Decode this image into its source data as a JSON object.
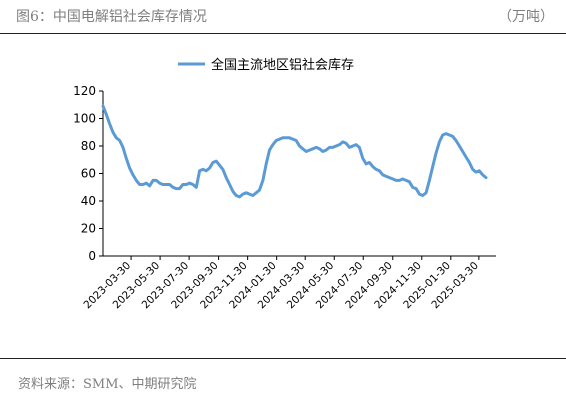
{
  "figure": {
    "title": "图6：中国电解铝社会库存情况",
    "unit": "（万吨）",
    "source": "资料来源：SMM、中期研究院"
  },
  "chart_data": {
    "type": "line",
    "ylim": [
      0,
      120
    ],
    "yticks": [
      0,
      20,
      40,
      60,
      80,
      100,
      120
    ],
    "xticks": [
      "2023-03-30",
      "2023-05-30",
      "2023-07-30",
      "2023-09-30",
      "2023-11-30",
      "2024-01-30",
      "2024-03-30",
      "2024-05-30",
      "2024-07-30",
      "2024-09-30",
      "2024-11-30",
      "2025-01-30",
      "2025-03-30"
    ],
    "xlim": [
      "2023-01-30",
      "2025-05-05"
    ],
    "legend_position": "top",
    "grid": false,
    "colors": {
      "series": "#5b9bd5"
    },
    "series": [
      {
        "name": "全国主流地区铝社会库存",
        "points": [
          [
            "2023-01-30",
            109
          ],
          [
            "2023-02-06",
            103
          ],
          [
            "2023-02-13",
            96
          ],
          [
            "2023-02-20",
            90
          ],
          [
            "2023-02-27",
            86
          ],
          [
            "2023-03-06",
            84
          ],
          [
            "2023-03-13",
            79
          ],
          [
            "2023-03-20",
            71
          ],
          [
            "2023-03-27",
            64
          ],
          [
            "2023-04-03",
            59
          ],
          [
            "2023-04-10",
            55
          ],
          [
            "2023-04-17",
            52
          ],
          [
            "2023-04-24",
            52
          ],
          [
            "2023-05-01",
            53
          ],
          [
            "2023-05-08",
            51
          ],
          [
            "2023-05-15",
            55
          ],
          [
            "2023-05-22",
            55
          ],
          [
            "2023-05-29",
            53
          ],
          [
            "2023-06-05",
            52
          ],
          [
            "2023-06-12",
            52
          ],
          [
            "2023-06-19",
            52
          ],
          [
            "2023-06-26",
            50
          ],
          [
            "2023-07-03",
            49
          ],
          [
            "2023-07-10",
            49
          ],
          [
            "2023-07-17",
            52
          ],
          [
            "2023-07-24",
            52
          ],
          [
            "2023-07-31",
            53
          ],
          [
            "2023-08-07",
            52
          ],
          [
            "2023-08-14",
            50
          ],
          [
            "2023-08-21",
            62
          ],
          [
            "2023-08-28",
            63
          ],
          [
            "2023-09-04",
            62
          ],
          [
            "2023-09-11",
            64
          ],
          [
            "2023-09-18",
            68
          ],
          [
            "2023-09-25",
            69
          ],
          [
            "2023-10-02",
            66
          ],
          [
            "2023-10-09",
            63
          ],
          [
            "2023-10-16",
            57
          ],
          [
            "2023-10-23",
            52
          ],
          [
            "2023-10-30",
            47
          ],
          [
            "2023-11-06",
            44
          ],
          [
            "2023-11-13",
            43
          ],
          [
            "2023-11-20",
            45
          ],
          [
            "2023-11-27",
            46
          ],
          [
            "2023-12-04",
            45
          ],
          [
            "2023-12-11",
            44
          ],
          [
            "2023-12-18",
            46
          ],
          [
            "2023-12-25",
            48
          ],
          [
            "2024-01-01",
            55
          ],
          [
            "2024-01-08",
            67
          ],
          [
            "2024-01-15",
            77
          ],
          [
            "2024-01-22",
            81
          ],
          [
            "2024-01-29",
            84
          ],
          [
            "2024-02-05",
            85
          ],
          [
            "2024-02-12",
            86
          ],
          [
            "2024-02-19",
            86
          ],
          [
            "2024-02-26",
            86
          ],
          [
            "2024-03-04",
            85
          ],
          [
            "2024-03-11",
            84
          ],
          [
            "2024-03-18",
            80
          ],
          [
            "2024-03-25",
            78
          ],
          [
            "2024-04-01",
            76
          ],
          [
            "2024-04-08",
            77
          ],
          [
            "2024-04-15",
            78
          ],
          [
            "2024-04-22",
            79
          ],
          [
            "2024-04-29",
            78
          ],
          [
            "2024-05-06",
            76
          ],
          [
            "2024-05-13",
            77
          ],
          [
            "2024-05-20",
            79
          ],
          [
            "2024-05-27",
            79
          ],
          [
            "2024-06-03",
            80
          ],
          [
            "2024-06-10",
            81
          ],
          [
            "2024-06-17",
            83
          ],
          [
            "2024-06-24",
            82
          ],
          [
            "2024-07-01",
            79
          ],
          [
            "2024-07-08",
            80
          ],
          [
            "2024-07-15",
            81
          ],
          [
            "2024-07-22",
            79
          ],
          [
            "2024-07-29",
            71
          ],
          [
            "2024-08-05",
            67
          ],
          [
            "2024-08-12",
            68
          ],
          [
            "2024-08-19",
            65
          ],
          [
            "2024-08-26",
            63
          ],
          [
            "2024-09-02",
            62
          ],
          [
            "2024-09-09",
            59
          ],
          [
            "2024-09-16",
            58
          ],
          [
            "2024-09-23",
            57
          ],
          [
            "2024-09-30",
            56
          ],
          [
            "2024-10-07",
            55
          ],
          [
            "2024-10-14",
            55
          ],
          [
            "2024-10-21",
            56
          ],
          [
            "2024-10-28",
            55
          ],
          [
            "2024-11-04",
            54
          ],
          [
            "2024-11-11",
            50
          ],
          [
            "2024-11-18",
            49
          ],
          [
            "2024-11-25",
            45
          ],
          [
            "2024-12-02",
            44
          ],
          [
            "2024-12-09",
            46
          ],
          [
            "2024-12-16",
            55
          ],
          [
            "2024-12-23",
            65
          ],
          [
            "2024-12-30",
            75
          ],
          [
            "2025-01-06",
            83
          ],
          [
            "2025-01-13",
            88
          ],
          [
            "2025-01-20",
            89
          ],
          [
            "2025-01-27",
            88
          ],
          [
            "2025-02-03",
            87
          ],
          [
            "2025-02-10",
            84
          ],
          [
            "2025-02-17",
            80
          ],
          [
            "2025-02-24",
            76
          ],
          [
            "2025-03-03",
            72
          ],
          [
            "2025-03-10",
            68
          ],
          [
            "2025-03-17",
            63
          ],
          [
            "2025-03-24",
            61
          ],
          [
            "2025-03-31",
            62
          ],
          [
            "2025-04-07",
            59
          ],
          [
            "2025-04-14",
            57
          ]
        ]
      }
    ]
  }
}
